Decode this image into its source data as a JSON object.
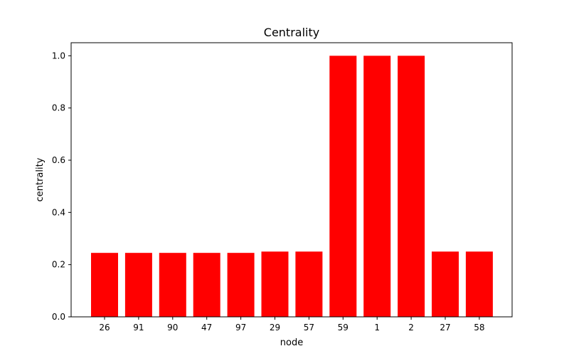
{
  "chart_data": {
    "type": "bar",
    "title": "Centrality",
    "xlabel": "node",
    "ylabel": "centrality",
    "categories": [
      "26",
      "91",
      "90",
      "47",
      "97",
      "29",
      "57",
      "59",
      "1",
      "2",
      "27",
      "58"
    ],
    "values": [
      0.245,
      0.245,
      0.245,
      0.245,
      0.245,
      0.25,
      0.25,
      1.0,
      1.0,
      1.0,
      0.25,
      0.25
    ],
    "ylim": [
      0,
      1.05
    ],
    "yticks": [
      "0.0",
      "0.2",
      "0.4",
      "0.6",
      "0.8",
      "1.0"
    ],
    "grid": false,
    "bar_color": "#ff0000"
  }
}
